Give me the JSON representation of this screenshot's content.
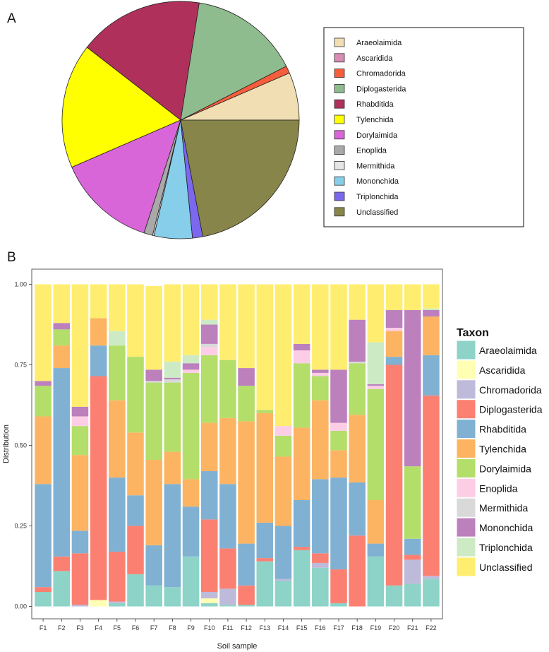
{
  "panels": {
    "a_label": "A",
    "b_label": "B"
  },
  "chart_data": [
    {
      "type": "pie",
      "categories": [
        "Araeolaimida",
        "Ascaridida",
        "Chromadorida",
        "Diplogasterida",
        "Rhabditida",
        "Tylenchida",
        "Dorylaimida",
        "Enoplida",
        "Mermithida",
        "Mononchida",
        "Triplonchida",
        "Unclassified"
      ],
      "values": [
        6.5,
        0.0,
        1.0,
        15.0,
        17.0,
        17.0,
        13.5,
        1.2,
        0.2,
        5.2,
        1.4,
        22.0
      ],
      "colors": [
        "#f2deb3",
        "#d98cb3",
        "#f55e3c",
        "#8fbc8f",
        "#b0305c",
        "#ffff00",
        "#d966d9",
        "#a9a9a9",
        "#e6e6e6",
        "#87ceeb",
        "#7b68ee",
        "#878549"
      ],
      "legend_position": "right"
    },
    {
      "type": "stacked-bar",
      "categories": [
        "F1",
        "F2",
        "F3",
        "F4",
        "F5",
        "F6",
        "F7",
        "F8",
        "F9",
        "F10",
        "F11",
        "F12",
        "F13",
        "F14",
        "F15",
        "F16",
        "F17",
        "F18",
        "F19",
        "F20",
        "F21",
        "F22"
      ],
      "xlabel": "Soil sample",
      "ylabel": "Distribution",
      "ylim": [
        0,
        1
      ],
      "yticks": [
        "0.00",
        "0.25",
        "0.50",
        "0.75",
        "1.00"
      ],
      "legend_title": "Taxon",
      "legend_position": "right",
      "series": [
        {
          "name": "Araeolaimida",
          "color": "#8dd3c7",
          "values": [
            0.045,
            0.11,
            0.0,
            0.0,
            0.01,
            0.1,
            0.065,
            0.06,
            0.155,
            0.01,
            0.005,
            0.005,
            0.14,
            0.08,
            0.175,
            0.12,
            0.01,
            0.0,
            0.155,
            0.065,
            0.07,
            0.085
          ]
        },
        {
          "name": "Ascaridida",
          "color": "#ffffb3",
          "values": [
            0.0,
            0.0,
            0.0,
            0.02,
            0.0,
            0.0,
            0.0,
            0.0,
            0.0,
            0.015,
            0.0,
            0.0,
            0.0,
            0.0,
            0.0,
            0.0,
            0.0,
            0.0,
            0.0,
            0.0,
            0.0,
            0.0
          ]
        },
        {
          "name": "Chromadorida",
          "color": "#bebada",
          "values": [
            0.0,
            0.0,
            0.005,
            0.0,
            0.005,
            0.0,
            0.0,
            0.0,
            0.0,
            0.02,
            0.05,
            0.0,
            0.0,
            0.005,
            0.0,
            0.015,
            0.0,
            0.0,
            0.0,
            0.0,
            0.075,
            0.01
          ]
        },
        {
          "name": "Diplogasterida",
          "color": "#fb8072",
          "values": [
            0.015,
            0.045,
            0.16,
            0.695,
            0.155,
            0.15,
            0.0,
            0.0,
            0.0,
            0.225,
            0.125,
            0.06,
            0.01,
            0.0,
            0.01,
            0.03,
            0.105,
            0.22,
            0.0,
            0.685,
            0.015,
            0.56
          ]
        },
        {
          "name": "Rhabditida",
          "color": "#80b1d3",
          "values": [
            0.32,
            0.585,
            0.07,
            0.095,
            0.23,
            0.095,
            0.125,
            0.32,
            0.155,
            0.15,
            0.2,
            0.13,
            0.11,
            0.165,
            0.145,
            0.23,
            0.285,
            0.165,
            0.04,
            0.025,
            0.05,
            0.125
          ]
        },
        {
          "name": "Tylenchida",
          "color": "#fdb462",
          "values": [
            0.21,
            0.07,
            0.235,
            0.085,
            0.24,
            0.195,
            0.265,
            0.1,
            0.085,
            0.15,
            0.205,
            0.38,
            0.34,
            0.215,
            0.225,
            0.245,
            0.085,
            0.21,
            0.135,
            0.08,
            0.0,
            0.12
          ]
        },
        {
          "name": "Dorylaimida",
          "color": "#b3de69",
          "values": [
            0.095,
            0.05,
            0.09,
            0.0,
            0.17,
            0.235,
            0.24,
            0.215,
            0.33,
            0.21,
            0.18,
            0.11,
            0.01,
            0.065,
            0.2,
            0.075,
            0.06,
            0.16,
            0.345,
            0.0,
            0.225,
            0.0
          ]
        },
        {
          "name": "Enoplida",
          "color": "#fccde5",
          "values": [
            0.0,
            0.0,
            0.03,
            0.0,
            0.0,
            0.0,
            0.0,
            0.0,
            0.01,
            0.025,
            0.0,
            0.0,
            0.0,
            0.03,
            0.04,
            0.01,
            0.025,
            0.0,
            0.01,
            0.01,
            0.0,
            0.0
          ]
        },
        {
          "name": "Mermithida",
          "color": "#d9d9d9",
          "values": [
            0.0,
            0.0,
            0.0,
            0.0,
            0.0,
            0.0,
            0.005,
            0.01,
            0.0,
            0.01,
            0.0,
            0.0,
            0.0,
            0.0,
            0.0,
            0.0,
            0.0,
            0.005,
            0.0,
            0.0,
            0.0,
            0.0
          ]
        },
        {
          "name": "Mononchida",
          "color": "#bc80bd",
          "values": [
            0.015,
            0.02,
            0.03,
            0.0,
            0.0,
            0.0,
            0.035,
            0.005,
            0.02,
            0.06,
            0.0,
            0.055,
            0.0,
            0.0,
            0.02,
            0.01,
            0.165,
            0.13,
            0.005,
            0.055,
            0.485,
            0.02
          ]
        },
        {
          "name": "Triplonchida",
          "color": "#ccebc5",
          "values": [
            0.0,
            0.0,
            0.0,
            0.0,
            0.045,
            0.0,
            0.0,
            0.05,
            0.025,
            0.015,
            0.0,
            0.0,
            0.0,
            0.0,
            0.0,
            0.0,
            0.0,
            0.0,
            0.13,
            0.0,
            0.0,
            0.005
          ]
        },
        {
          "name": "Unclassified",
          "color": "#ffed6f",
          "values": [
            0.3,
            0.12,
            0.38,
            0.105,
            0.145,
            0.225,
            0.26,
            0.24,
            0.22,
            0.11,
            0.235,
            0.26,
            0.39,
            0.44,
            0.185,
            0.265,
            0.265,
            0.11,
            0.18,
            0.08,
            0.08,
            0.075
          ]
        }
      ]
    }
  ]
}
